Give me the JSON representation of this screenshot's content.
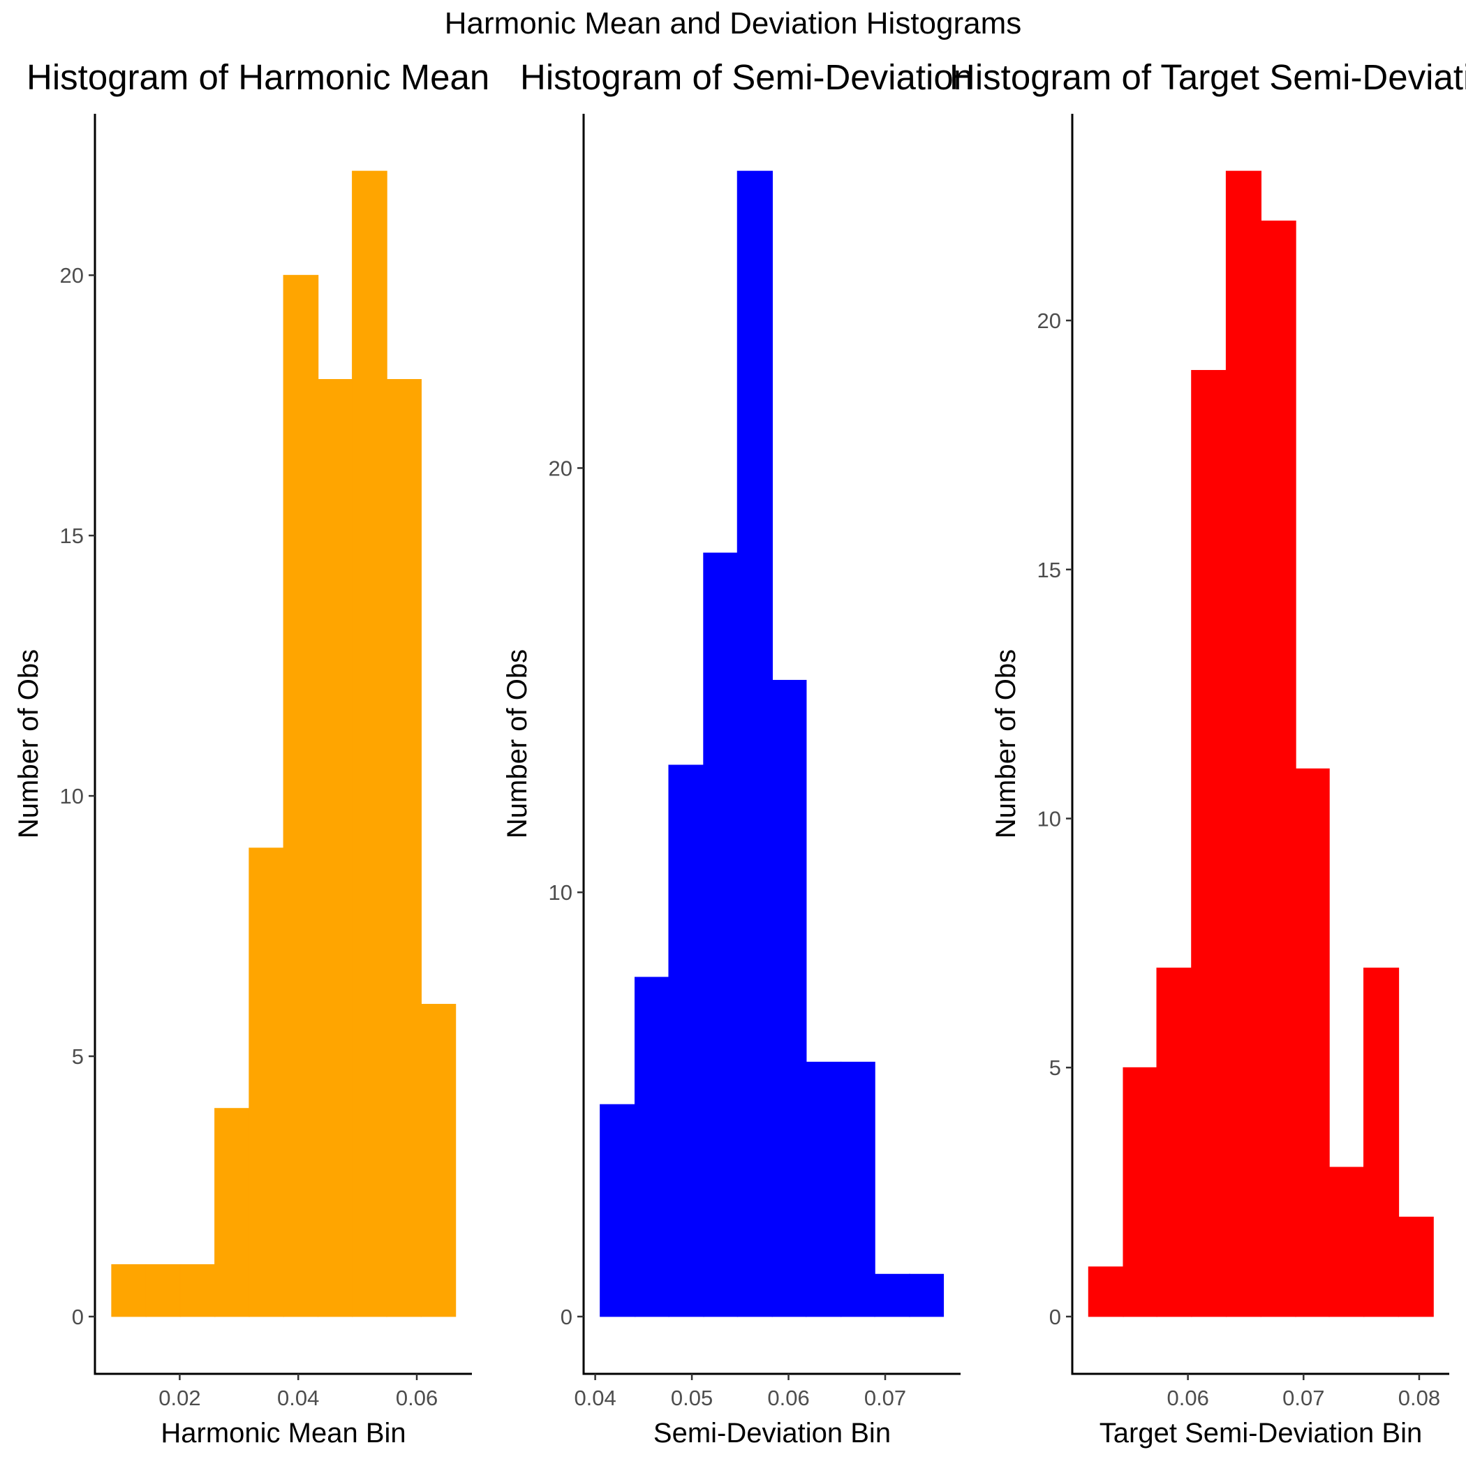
{
  "figure": {
    "title": "Harmonic Mean and Deviation Histograms"
  },
  "chart_data": [
    {
      "type": "histogram",
      "title": "Histogram of Harmonic Mean",
      "xlabel": "Harmonic Mean Bin",
      "ylabel": "Number of Obs",
      "color": "#FFA500",
      "bin_edges": [
        0.0085,
        0.0143,
        0.0201,
        0.0259,
        0.0317,
        0.0375,
        0.0433,
        0.0491,
        0.0549,
        0.0607,
        0.0665
      ],
      "counts": [
        1,
        1,
        1,
        4,
        9,
        20,
        18,
        22,
        18,
        6
      ],
      "xlim": [
        0.0057,
        0.0693
      ],
      "ylim": [
        -1.1,
        23.1
      ],
      "xticks": [
        0.02,
        0.04,
        0.06
      ],
      "xtick_labels": [
        "0.02",
        "0.04",
        "0.06"
      ],
      "yticks": [
        0,
        5,
        10,
        15,
        20
      ],
      "ytick_labels": [
        "0",
        "5",
        "10",
        "15",
        "20"
      ],
      "grid": false
    },
    {
      "type": "histogram",
      "title": "Histogram of Semi-Deviation",
      "xlabel": "Semi-Deviation Bin",
      "ylabel": "Number of Obs",
      "color": "#0000FF",
      "bin_edges": [
        0.0405,
        0.0441,
        0.0476,
        0.0512,
        0.0547,
        0.0583,
        0.0618,
        0.0654,
        0.0689,
        0.0725,
        0.076
      ],
      "counts": [
        5,
        8,
        13,
        18,
        27,
        15,
        6,
        6,
        1,
        1
      ],
      "xlim": [
        0.0388,
        0.0778
      ],
      "ylim": [
        -1.35,
        28.35
      ],
      "xticks": [
        0.04,
        0.05,
        0.06,
        0.07
      ],
      "xtick_labels": [
        "0.04",
        "0.05",
        "0.06",
        "0.07"
      ],
      "yticks": [
        0,
        10,
        20
      ],
      "ytick_labels": [
        "0",
        "10",
        "20"
      ],
      "grid": false
    },
    {
      "type": "histogram",
      "title": "Histogram of Target Semi-Deviation",
      "xlabel": "Target Semi-Deviation Bin",
      "ylabel": "Number of Obs",
      "color": "#FF0000",
      "bin_edges": [
        0.0514,
        0.0544,
        0.0573,
        0.0603,
        0.0633,
        0.0663,
        0.0693,
        0.0722,
        0.0752,
        0.0782,
        0.0812
      ],
      "counts": [
        1,
        5,
        7,
        19,
        23,
        22,
        11,
        3,
        7,
        2
      ],
      "xlim": [
        0.05,
        0.0826
      ],
      "ylim": [
        -1.15,
        24.15
      ],
      "xticks": [
        0.06,
        0.07,
        0.08
      ],
      "xtick_labels": [
        "0.06",
        "0.07",
        "0.08"
      ],
      "yticks": [
        0,
        5,
        10,
        15,
        20
      ],
      "ytick_labels": [
        "0",
        "5",
        "10",
        "15",
        "20"
      ],
      "grid": false
    }
  ]
}
